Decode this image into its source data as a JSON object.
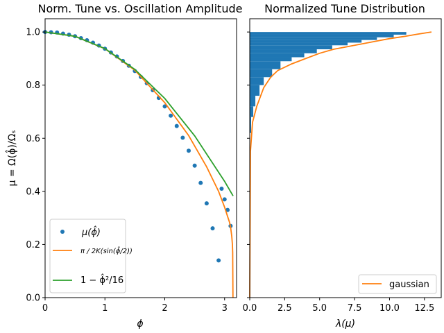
{
  "chart_data": [
    {
      "type": "scatter",
      "title": "Norm. Tune vs. Oscillation Amplitude",
      "xlabel": "ϕ",
      "ylabel": "μ = Ω(ϕ̂)/Ωₛ",
      "xlim": [
        0,
        3.2
      ],
      "ylim": [
        0,
        1.05
      ],
      "xticks": [
        "0",
        "1",
        "2",
        "3"
      ],
      "yticks": [
        "0.0",
        "0.2",
        "0.4",
        "0.6",
        "0.8",
        "1.0"
      ],
      "legend_position": "lower-left",
      "colors": {
        "scatter": "#1f77b4",
        "exact": "#ff7f0e",
        "approx": "#2ca02c"
      },
      "series": [
        {
          "name": "μ(ϕ̂)",
          "kind": "points",
          "x": [
            0.0,
            0.1,
            0.2,
            0.3,
            0.4,
            0.5,
            0.6,
            0.7,
            0.8,
            0.9,
            1.0,
            1.1,
            1.2,
            1.3,
            1.4,
            1.5,
            1.6,
            1.7,
            1.8,
            1.9,
            2.0,
            2.1,
            2.2,
            2.3,
            2.4,
            2.5,
            2.6,
            2.7,
            2.8,
            2.9,
            2.95,
            3.0,
            3.05,
            3.1
          ],
          "y": [
            1.0,
            0.999,
            0.998,
            0.994,
            0.99,
            0.984,
            0.977,
            0.969,
            0.96,
            0.949,
            0.937,
            0.923,
            0.908,
            0.891,
            0.873,
            0.853,
            0.831,
            0.807,
            0.781,
            0.752,
            0.72,
            0.685,
            0.646,
            0.602,
            0.553,
            0.497,
            0.432,
            0.355,
            0.261,
            0.14,
            0.41,
            0.37,
            0.33,
            0.27
          ]
        },
        {
          "name": "π / 2K(sin(ϕ̂/2))",
          "kind": "line",
          "x": [
            0.0,
            0.5,
            1.0,
            1.5,
            2.0,
            2.4,
            2.7,
            2.9,
            3.0,
            3.05,
            3.08,
            3.1,
            3.12,
            3.13,
            3.135,
            3.14
          ],
          "y": [
            1.0,
            0.984,
            0.937,
            0.856,
            0.734,
            0.61,
            0.492,
            0.4,
            0.34,
            0.305,
            0.285,
            0.265,
            0.23,
            0.2,
            0.17,
            0.0
          ]
        },
        {
          "name": "1 − ϕ̂²/16",
          "kind": "line",
          "x": [
            0.0,
            0.5,
            1.0,
            1.5,
            2.0,
            2.5,
            3.0,
            3.1416
          ],
          "y": [
            1.0,
            0.984,
            0.9375,
            0.859,
            0.75,
            0.609,
            0.4375,
            0.383
          ]
        }
      ]
    },
    {
      "type": "bar",
      "title": "Normalized Tune Distribution",
      "xlabel": "λ(μ)",
      "xlim": [
        0,
        13.7
      ],
      "ylim": [
        0,
        1.05
      ],
      "xticks": [
        "0.0",
        "2.5",
        "5.0",
        "7.5",
        "10.0",
        "12.5"
      ],
      "legend_position": "lower-right",
      "colors": {
        "hist": "#1f77b4",
        "gaussian": "#ff7f0e"
      },
      "histogram": {
        "orientation": "horizontal",
        "bins": [
          {
            "y0": 0.62,
            "y1": 0.68,
            "count": 0.1
          },
          {
            "y0": 0.68,
            "y1": 0.72,
            "count": 0.25
          },
          {
            "y0": 0.72,
            "y1": 0.76,
            "count": 0.4
          },
          {
            "y0": 0.76,
            "y1": 0.8,
            "count": 0.7
          },
          {
            "y0": 0.8,
            "y1": 0.83,
            "count": 1.0
          },
          {
            "y0": 0.83,
            "y1": 0.86,
            "count": 1.6
          },
          {
            "y0": 0.86,
            "y1": 0.89,
            "count": 2.2
          },
          {
            "y0": 0.89,
            "y1": 0.905,
            "count": 3.0
          },
          {
            "y0": 0.905,
            "y1": 0.92,
            "count": 3.9
          },
          {
            "y0": 0.92,
            "y1": 0.935,
            "count": 4.8
          },
          {
            "y0": 0.935,
            "y1": 0.95,
            "count": 5.9
          },
          {
            "y0": 0.95,
            "y1": 0.96,
            "count": 7.0
          },
          {
            "y0": 0.96,
            "y1": 0.97,
            "count": 8.0
          },
          {
            "y0": 0.97,
            "y1": 0.98,
            "count": 9.1
          },
          {
            "y0": 0.98,
            "y1": 0.99,
            "count": 10.3
          },
          {
            "y0": 0.99,
            "y1": 1.0,
            "count": 11.2
          }
        ]
      },
      "series": [
        {
          "name": "gaussian",
          "kind": "line",
          "x": [
            0.0,
            0.05,
            0.2,
            0.5,
            1.0,
            1.5,
            2.0,
            3.0,
            4.0,
            5.0,
            6.0,
            7.0,
            8.0,
            9.0,
            10.0,
            11.0,
            12.0,
            13.0
          ],
          "y": [
            0.0,
            0.55,
            0.66,
            0.72,
            0.79,
            0.83,
            0.855,
            0.88,
            0.9,
            0.92,
            0.935,
            0.945,
            0.955,
            0.965,
            0.975,
            0.983,
            0.992,
            1.0
          ]
        }
      ]
    }
  ]
}
